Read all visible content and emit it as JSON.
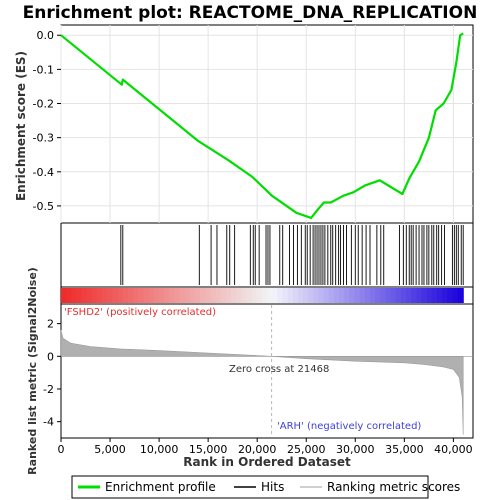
{
  "chart_data": {
    "type": "line",
    "title": "Enrichment plot: REACTOME_DNA_REPLICATION",
    "xlabel": "Rank in Ordered Dataset",
    "ylabel_top": "Enrichment score (ES)",
    "ylabel_bottom": "Ranked list metric (Signal2Noise)",
    "x_ticks": [
      "0",
      "5,000",
      "10,000",
      "15,000",
      "20,000",
      "25,000",
      "30,000",
      "35,000",
      "40,000"
    ],
    "x_tick_values": [
      0,
      5000,
      10000,
      15000,
      20000,
      25000,
      30000,
      35000,
      40000
    ],
    "xlim": [
      0,
      42000
    ],
    "es_ticks": [
      "0.0",
      "-0.1",
      "-0.2",
      "-0.3",
      "-0.4",
      "-0.5"
    ],
    "es_tick_values": [
      0.0,
      -0.1,
      -0.2,
      -0.3,
      -0.4,
      -0.5
    ],
    "es_ylim": [
      -0.55,
      0.03
    ],
    "metric_ticks": [
      "2",
      "0",
      "-2",
      "-4"
    ],
    "metric_tick_values": [
      2,
      0,
      -2,
      -4
    ],
    "metric_ylim": [
      -5.0,
      3.2
    ],
    "grid": true,
    "legend_position": "bottom",
    "colors": {
      "es_line": "#00dd00",
      "hits": "#000000",
      "metric_fill": "#b0b0b0",
      "positive_label": "#e03030",
      "negative_label": "#4040dd"
    },
    "series": [
      {
        "name": "Enrichment profile",
        "x": [
          0,
          6200,
          6300,
          14000,
          17000,
          19500,
          21500,
          24000,
          25500,
          26200,
          26800,
          27500,
          28800,
          29800,
          31000,
          32500,
          34800,
          35500,
          36500,
          37500,
          38200,
          39000,
          39800,
          40300,
          40700,
          41000
        ],
        "y": [
          0.0,
          -0.145,
          -0.13,
          -0.31,
          -0.365,
          -0.415,
          -0.47,
          -0.52,
          -0.535,
          -0.51,
          -0.49,
          -0.49,
          -0.47,
          -0.46,
          -0.44,
          -0.425,
          -0.465,
          -0.42,
          -0.37,
          -0.3,
          -0.22,
          -0.2,
          -0.16,
          -0.08,
          0.0,
          0.005
        ]
      }
    ],
    "hits": [
      6100,
      6300,
      14100,
      15300,
      15900,
      16900,
      17200,
      17700,
      19300,
      19600,
      19800,
      20200,
      20900,
      21100,
      21300,
      22300,
      22600,
      23300,
      23700,
      24100,
      24500,
      24900,
      25100,
      25400,
      25700,
      25900,
      26100,
      26300,
      26500,
      26700,
      26900,
      27200,
      27500,
      27700,
      28000,
      28300,
      28500,
      28800,
      29100,
      29600,
      30000,
      30300,
      30700,
      31100,
      31500,
      32200,
      32600,
      32900,
      34500,
      34900,
      35200,
      35500,
      35700,
      35900,
      36200,
      36500,
      36800,
      37000,
      37300,
      37500,
      37800,
      38000,
      38300,
      38500,
      38800,
      39100,
      39900,
      40100,
      40300,
      40500,
      40800,
      41000
    ],
    "metric": {
      "x": [
        0,
        200,
        1000,
        3000,
        6000,
        10000,
        15000,
        20000,
        21468,
        25000,
        30000,
        35000,
        37000,
        39000,
        40000,
        40600,
        40900,
        41000
      ],
      "y": [
        1.6,
        1.1,
        0.8,
        0.6,
        0.45,
        0.35,
        0.2,
        0.05,
        0.0,
        -0.15,
        -0.3,
        -0.4,
        -0.5,
        -0.65,
        -0.8,
        -1.3,
        -2.5,
        -4.8
      ]
    },
    "positive_label": "'FSHD2' (positively correlated)",
    "negative_label": "'ARH' (negatively correlated)",
    "zero_cross_label": "Zero cross at 21468",
    "zero_cross": 21468,
    "legend": [
      "Enrichment profile",
      "Hits",
      "Ranking metric scores"
    ]
  }
}
